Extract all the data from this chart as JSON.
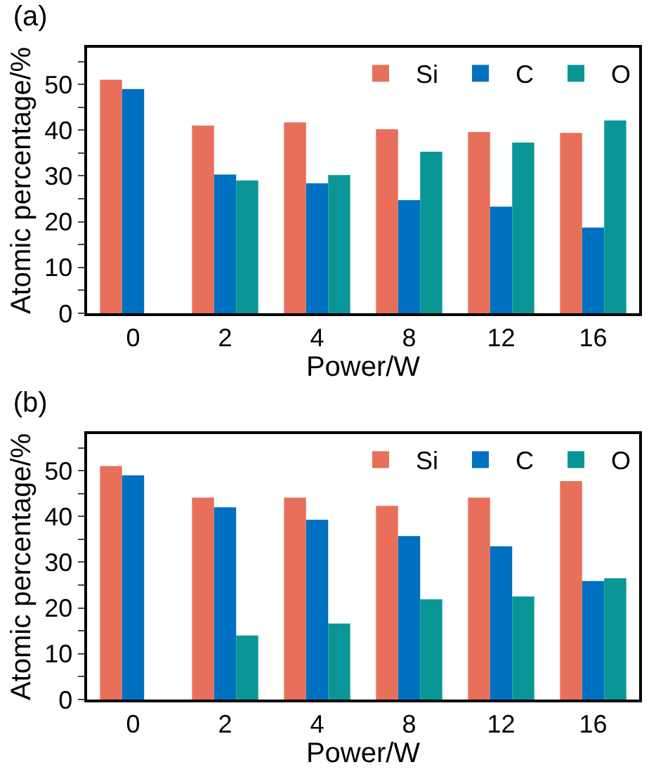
{
  "chart_data": [
    {
      "type": "bar",
      "title": "(a)",
      "xlabel": "Power/W",
      "ylabel": "Atomic percentage/%",
      "categories": [
        "0",
        "2",
        "4",
        "8",
        "12",
        "16"
      ],
      "ylim": [
        0,
        58
      ],
      "yticks": [
        0,
        {
          "value": 5,
          "label": null
        },
        10,
        {
          "value": 15,
          "label": null
        },
        20,
        {
          "value": 25,
          "label": null
        },
        30,
        {
          "value": 35,
          "label": null
        },
        40,
        {
          "value": 45,
          "label": null
        },
        50,
        {
          "value": 55,
          "label": null
        }
      ],
      "grid": false,
      "legend": "top right",
      "series": [
        {
          "name": "Si",
          "color": "#e8705a",
          "values": [
            51,
            41,
            41.7,
            40.2,
            39.6,
            39.4
          ]
        },
        {
          "name": "C",
          "color": "#0070c0",
          "values": [
            49,
            30.3,
            28.4,
            24.7,
            23.3,
            18.7
          ]
        },
        {
          "name": "O",
          "color": "#0a9696",
          "values": [
            null,
            29,
            30.2,
            35.3,
            37.3,
            42.1
          ]
        }
      ]
    },
    {
      "type": "bar",
      "title": "(b)",
      "xlabel": "Power/W",
      "ylabel": "Atomic percentage/%",
      "categories": [
        "0",
        "2",
        "4",
        "8",
        "12",
        "16"
      ],
      "ylim": [
        0,
        58
      ],
      "yticks": [
        0,
        {
          "value": 5,
          "label": null
        },
        10,
        {
          "value": 15,
          "label": null
        },
        20,
        {
          "value": 25,
          "label": null
        },
        30,
        {
          "value": 35,
          "label": null
        },
        40,
        {
          "value": 45,
          "label": null
        },
        50,
        {
          "value": 55,
          "label": null
        }
      ],
      "grid": false,
      "legend": "top right",
      "series": [
        {
          "name": "Si",
          "color": "#e8705a",
          "values": [
            51,
            44.1,
            44.1,
            42.3,
            44.1,
            47.7
          ]
        },
        {
          "name": "C",
          "color": "#0070c0",
          "values": [
            49,
            42,
            39.3,
            35.7,
            33.5,
            25.9
          ]
        },
        {
          "name": "O",
          "color": "#0a9696",
          "values": [
            null,
            14,
            16.6,
            21.9,
            22.5,
            26.5
          ]
        }
      ]
    }
  ]
}
